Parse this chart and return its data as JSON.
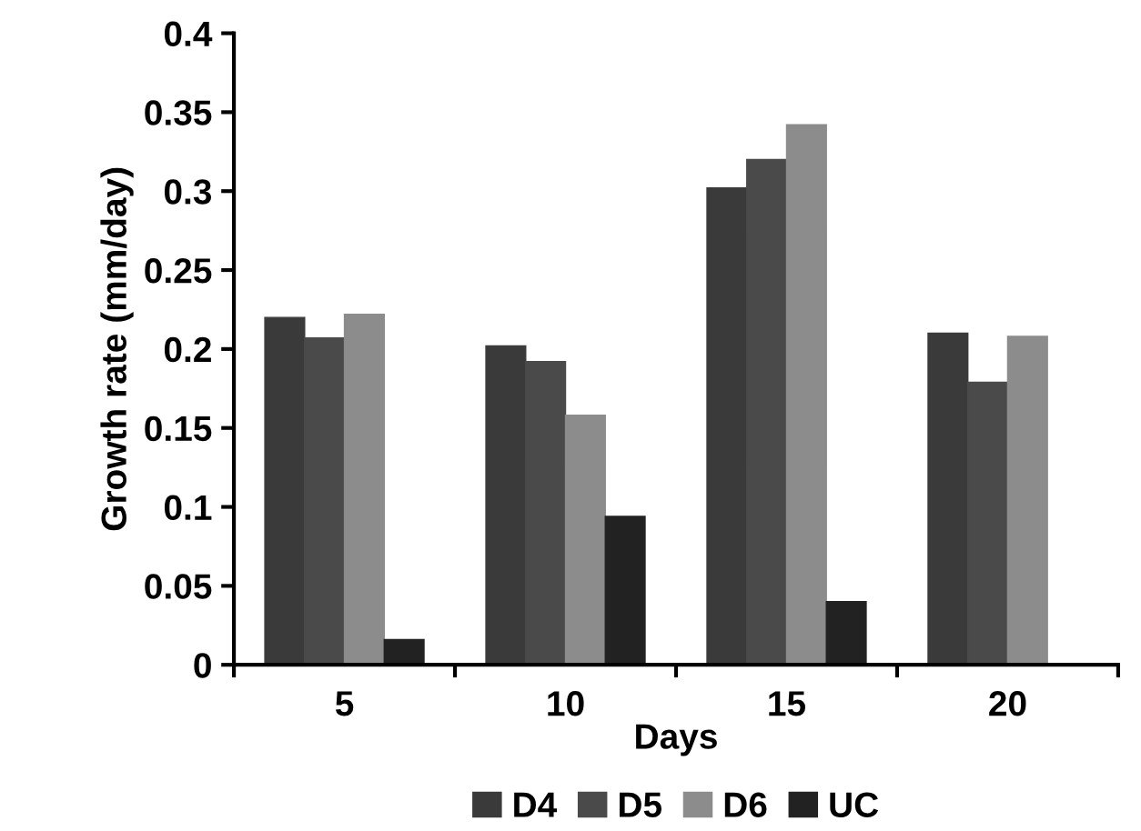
{
  "chart_data": {
    "type": "bar",
    "xlabel": "Days",
    "ylabel": "Growth rate (mm/day)",
    "categories": [
      "5",
      "10",
      "15",
      "20"
    ],
    "series": [
      {
        "name": "D4",
        "color": "#3a3a3a",
        "values": [
          0.22,
          0.202,
          0.302,
          0.21
        ]
      },
      {
        "name": "D5",
        "color": "#4a4a4a",
        "values": [
          0.207,
          0.192,
          0.32,
          0.179
        ]
      },
      {
        "name": "D6",
        "color": "#8c8c8c",
        "values": [
          0.222,
          0.158,
          0.342,
          0.208
        ]
      },
      {
        "name": "UC",
        "color": "#222222",
        "values": [
          0.016,
          0.094,
          0.04,
          null
        ]
      }
    ],
    "ylim": [
      0,
      0.4
    ],
    "yticks": [
      0,
      0.05,
      0.1,
      0.15,
      0.2,
      0.25,
      0.3,
      0.35,
      0.4
    ],
    "grid": false,
    "legend": "bottom"
  }
}
